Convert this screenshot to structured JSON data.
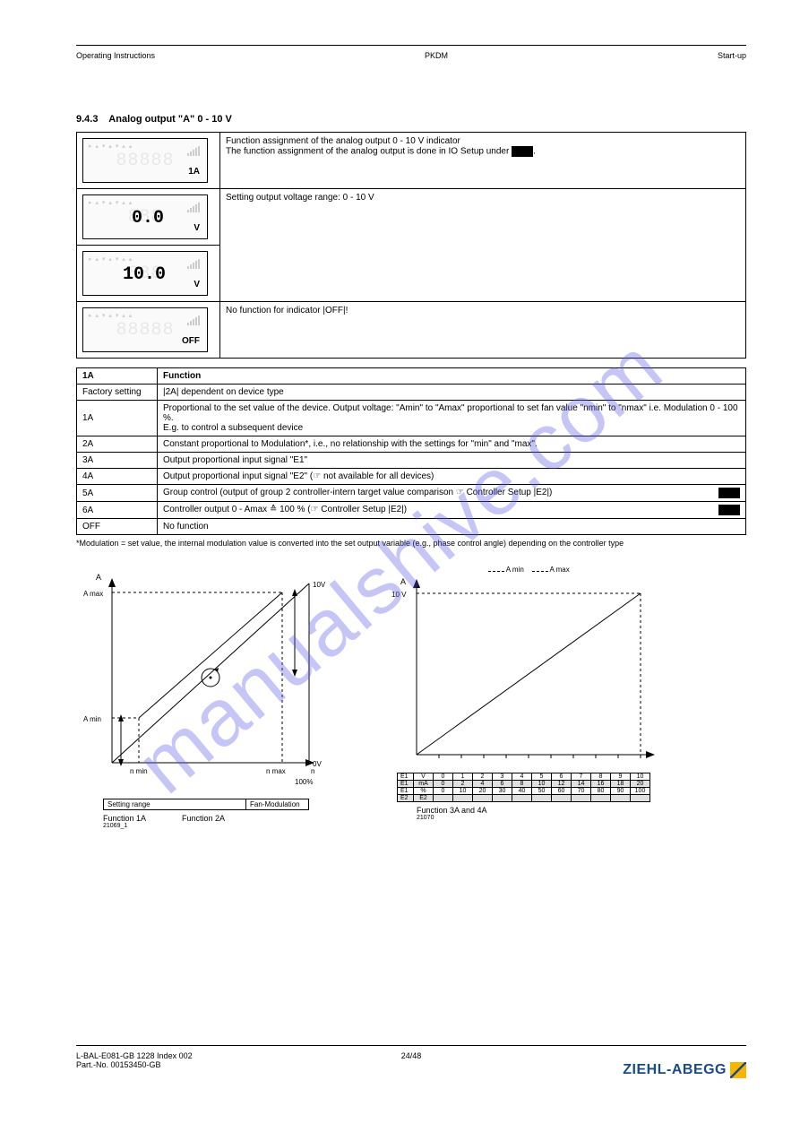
{
  "header": {
    "left": "Operating Instructions",
    "center": "PKDM",
    "right": "Start-up"
  },
  "section": {
    "number": "9.4.3",
    "title": "Analog output \"A\" 0 - 10 V",
    "description1": "Function assignment of the analog output 0 - 10 V indicator",
    "description2": "The function assignment of the analog output is done in IO Setup under",
    "note_after_lcd": "Setting output voltage range: 0 - 10 V"
  },
  "lcd_rows": [
    {
      "value": "",
      "unit": "1A",
      "text": "Function assignment of the analog output 0 - 10 V indicator\nThe function assignment of the analog output is done in IO Setup under |1A|."
    },
    {
      "value": "0.0",
      "unit": "V",
      "text": "Setting output voltage range: 0 - 10 V"
    },
    {
      "value": "10.0",
      "unit": "V",
      "text": ""
    },
    {
      "value": "",
      "unit": "OFF",
      "text": "No function for indicator |OFF|!"
    }
  ],
  "spec_table": {
    "header": [
      "1A",
      "Function"
    ],
    "rows": [
      [
        "Factory setting",
        "|2A| dependent on device type"
      ],
      [
        "1A",
        "Proportional to the set value of the device. Output voltage: \"Amin\" to \"Amax\" proportional to set fan value \"nmin\" to \"nmax\" i.e. Modulation 0 - 100 %.\nE.g. to control a subsequent device"
      ],
      [
        "2A",
        "Constant proportional to Modulation*, i.e., no relationship with the settings for \"min\" and \"max\"."
      ],
      [
        "3A",
        "Output proportional input signal \"E1\""
      ],
      [
        "4A",
        "Output proportional input signal \"E2\" (☞ not available for all devices)"
      ],
      [
        "5A",
        "Group control (output of group 2 controller-intern target value comparison ☞ Controller Setup |E2|)"
      ],
      [
        "6A",
        "Controller output 0 - Amax ≙ 100 % (☞ Controller Setup |E2|)"
      ],
      [
        "OFF",
        "No function"
      ]
    ]
  },
  "footnote": "*Modulation = set value, the internal modulation value is converted into the set output variable (e.g., phase control angle) depending on the controller type",
  "chart1": {
    "title_top": "A",
    "axis_y_top": "A max",
    "axis_y_min": "A min",
    "axis_x_min": "n min",
    "axis_x_max": "n max",
    "axis_x_label": "Fan-Modulation",
    "caption_left": "Function 1A",
    "caption_right": "Function 2A",
    "label_right_top": "10V",
    "label_right_bottom": "0V",
    "axis_right": "100%",
    "settings_label": "Setting range",
    "n_label": "n",
    "ref_id": "21069_1"
  },
  "chart2": {
    "axis_y_label": "A",
    "axis_y_top": "10 V",
    "legend_left": "A min",
    "legend_right": "A max",
    "x_values_e1_v": [
      "V",
      "0",
      "1",
      "2",
      "3",
      "4",
      "5",
      "6",
      "7",
      "8",
      "9",
      "10"
    ],
    "x_values_e1_ma": [
      "mA",
      "0",
      "2",
      "4",
      "6",
      "8",
      "10",
      "12",
      "14",
      "16",
      "18",
      "20"
    ],
    "x_values_e1_pct": [
      "%",
      "0",
      "10",
      "20",
      "30",
      "40",
      "50",
      "60",
      "70",
      "80",
      "90",
      "100"
    ],
    "x_values_e2": [
      "E2",
      "",
      "",
      "",
      "",
      "",
      "",
      "",
      "",
      "",
      "",
      ""
    ],
    "row_labels": [
      "E1",
      "E1",
      "E1",
      "E2"
    ],
    "caption": "Function 3A and 4A",
    "ref_id": "21070"
  },
  "colors": {
    "text": "#000000",
    "watermark": "rgba(90,90,230,0.35)",
    "logo_blue": "#1a4a8a",
    "logo_yellow": "#f7b500",
    "table_shade": "#e0e0e0"
  },
  "footer": {
    "line1": "L-BAL-E081-GB 1228 Index 002",
    "line2": "Part.-No. 00153450-GB",
    "page": "24/48",
    "logo_text": "ZIEHL-ABEGG"
  }
}
